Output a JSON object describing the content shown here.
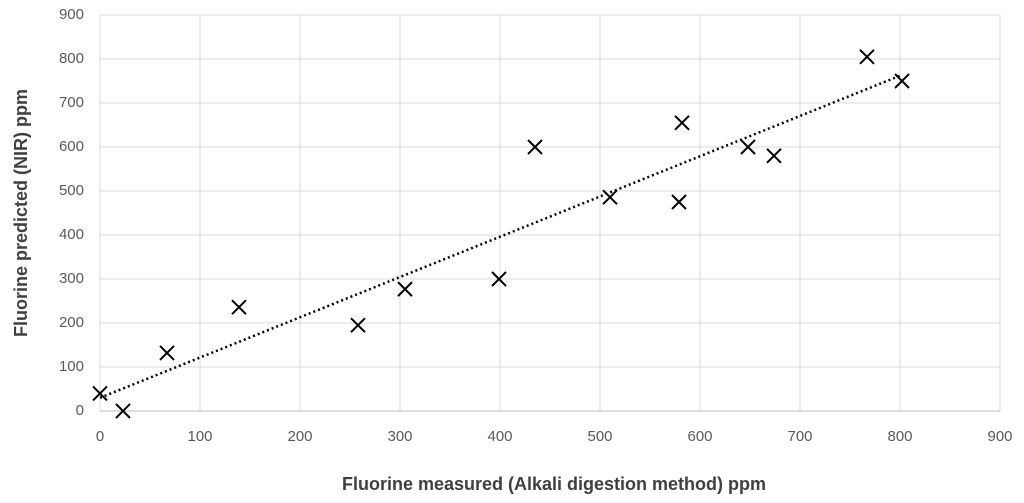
{
  "chart_data": {
    "type": "scatter",
    "x_label": "Fluorine measured (Alkali digestion method) ppm",
    "y_label": "Fluorine predicted (NIR) ppm",
    "series": [
      {
        "color": "#000000",
        "x": [
          0,
          23,
          67,
          139,
          258,
          305,
          399,
          435,
          510,
          579,
          582,
          648,
          674,
          767,
          802
        ],
        "values": [
          40,
          0,
          132,
          236,
          195,
          277,
          300,
          600,
          486,
          475,
          655,
          600,
          580,
          805,
          750
        ]
      }
    ],
    "trendline": {
      "x": [
        0,
        800
      ],
      "values": [
        30,
        762
      ],
      "color": "#000000"
    },
    "xlim": [
      0,
      900
    ],
    "xticks": [
      0,
      100,
      200,
      300,
      400,
      500,
      600,
      700,
      800,
      900
    ],
    "ylim": [
      0,
      900
    ],
    "yticks": [
      0,
      100,
      200,
      300,
      400,
      500,
      600,
      700,
      800,
      900
    ],
    "grid": true
  }
}
